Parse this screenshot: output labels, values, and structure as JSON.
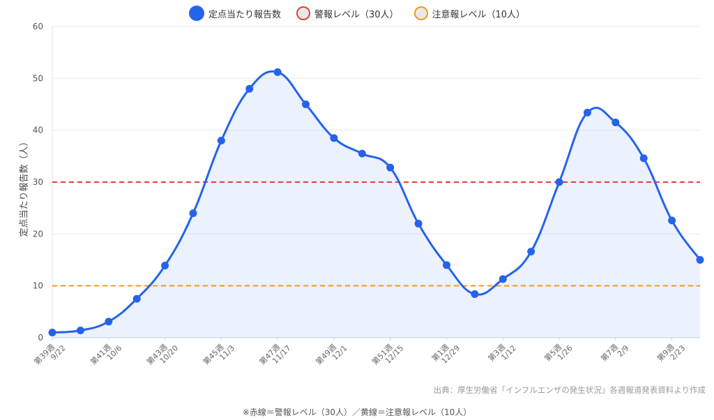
{
  "colors": {
    "main": "#2563eb",
    "warning": "#e0403a",
    "caution": "#ee9b12",
    "fill": "rgba(37,99,235,0.09)",
    "grid": "#ececec"
  },
  "chart_data": {
    "type": "line",
    "categories": [
      "第39週 9/22",
      "",
      "第41週 10/6",
      "",
      "第43週 10/20",
      "",
      "第45週 11/3",
      "",
      "第47週 11/17",
      "",
      "第49週 12/1",
      "",
      "第51週 12/15",
      "",
      "第1週 12/29",
      "",
      "第3週 1/12",
      "",
      "第5週 1/26",
      "",
      "第7週 2/9",
      "",
      "第9週 2/23",
      ""
    ],
    "tick_labels": [
      {
        "week": "第39週",
        "date": "9/22"
      },
      {
        "week": "第41週",
        "date": "10/6"
      },
      {
        "week": "第43週",
        "date": "10/20"
      },
      {
        "week": "第45週",
        "date": "11/3"
      },
      {
        "week": "第47週",
        "date": "11/17"
      },
      {
        "week": "第49週",
        "date": "12/1"
      },
      {
        "week": "第51週",
        "date": "12/15"
      },
      {
        "week": "第1週",
        "date": "12/29"
      },
      {
        "week": "第3週",
        "date": "1/12"
      },
      {
        "week": "第5週",
        "date": "1/26"
      },
      {
        "week": "第7週",
        "date": "2/9"
      },
      {
        "week": "第9週",
        "date": "2/23"
      }
    ],
    "series": [
      {
        "name": "定点当たり報告数",
        "values": [
          1.0,
          1.4,
          3.1,
          7.5,
          13.9,
          24.0,
          38.0,
          48.0,
          51.2,
          45.0,
          38.5,
          35.5,
          32.8,
          22.0,
          14.0,
          8.4,
          11.3,
          16.6,
          30.0,
          43.4,
          41.5,
          34.6,
          22.6,
          15.0
        ]
      }
    ],
    "reference_lines": [
      {
        "name": "警報レベル（30人）",
        "value": 30
      },
      {
        "name": "注意報レベル（10人）",
        "value": 10
      }
    ],
    "ylabel": "定点当たり報告数（人）",
    "ylim": [
      0,
      60
    ],
    "yticks": [
      0,
      10,
      20,
      30,
      40,
      50,
      60
    ],
    "grid": true,
    "legend_position": "top-center"
  },
  "legend": {
    "main": "定点当たり報告数",
    "warning": "警報レベル（30人）",
    "caution": "注意報レベル（10人）"
  },
  "source_text": "出典：厚生労働省「インフルエンザの発生状況」各週報道発表資料より作成",
  "footnote": "※赤線＝警報レベル（30人）／黄線＝注意報レベル（10人）"
}
